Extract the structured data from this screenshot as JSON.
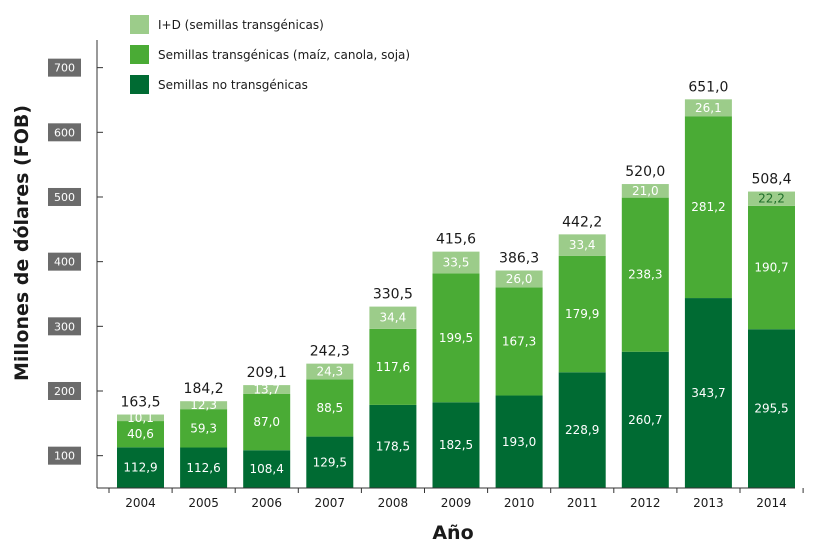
{
  "chart_data": {
    "type": "bar",
    "stacked": true,
    "categories": [
      "2004",
      "2005",
      "2006",
      "2007",
      "2008",
      "2009",
      "2010",
      "2011",
      "2012",
      "2013",
      "2014"
    ],
    "series": [
      {
        "name": "Semillas no transgénicas",
        "color": "#006b33",
        "values": [
          112.9,
          112.6,
          108.4,
          129.5,
          178.5,
          182.5,
          193.0,
          228.9,
          260.7,
          343.7,
          295.5
        ],
        "labels": [
          "112,9",
          "112,6",
          "108,4",
          "129,5",
          "178,5",
          "182,5",
          "193,0",
          "228,9",
          "260,7",
          "343,7",
          "295,5"
        ]
      },
      {
        "name": "Semillas transgénicas (maíz, canola, soja)",
        "color": "#4aab35",
        "values": [
          40.6,
          59.3,
          87.0,
          88.5,
          117.6,
          199.5,
          167.3,
          179.9,
          238.3,
          281.2,
          190.7
        ],
        "labels": [
          "40,6",
          "59,3",
          "87,0",
          "88,5",
          "117,6",
          "199,5",
          "167,3",
          "179,9",
          "238,3",
          "281,2",
          "190,7"
        ]
      },
      {
        "name": "I+D (semillas transgénicas)",
        "color": "#9ccc8a",
        "values": [
          10.1,
          12.3,
          13.7,
          24.3,
          34.4,
          33.5,
          26.0,
          33.4,
          21.0,
          26.1,
          22.2
        ],
        "labels": [
          "10,1",
          "12,3",
          "13,7",
          "24,3",
          "34,4",
          "33,5",
          "26,0",
          "33,4",
          "21,0",
          "26,1",
          "22,2"
        ]
      }
    ],
    "totals": [
      163.5,
      184.2,
      209.1,
      242.3,
      330.5,
      415.6,
      386.3,
      442.2,
      520.0,
      651.0,
      508.4
    ],
    "total_labels": [
      "163,5",
      "184,2",
      "209,1",
      "242,3",
      "330,5",
      "415,6",
      "386,3",
      "442,2",
      "520,0",
      "651,0",
      "508,4"
    ],
    "legend_order": [
      "I+D (semillas transgénicas)",
      "Semillas transgénicas (maíz, canola, soja)",
      "Semillas no transgénicas"
    ],
    "legend_position": "top-left",
    "yticks": [
      "100",
      "200",
      "300",
      "400",
      "500",
      "600",
      "700"
    ],
    "xlabel": "Año",
    "ylabel": "Millones de dólares (FOB)",
    "grid": false,
    "tick_box_color": "#6b6b6b",
    "axis_color": "#333333"
  }
}
